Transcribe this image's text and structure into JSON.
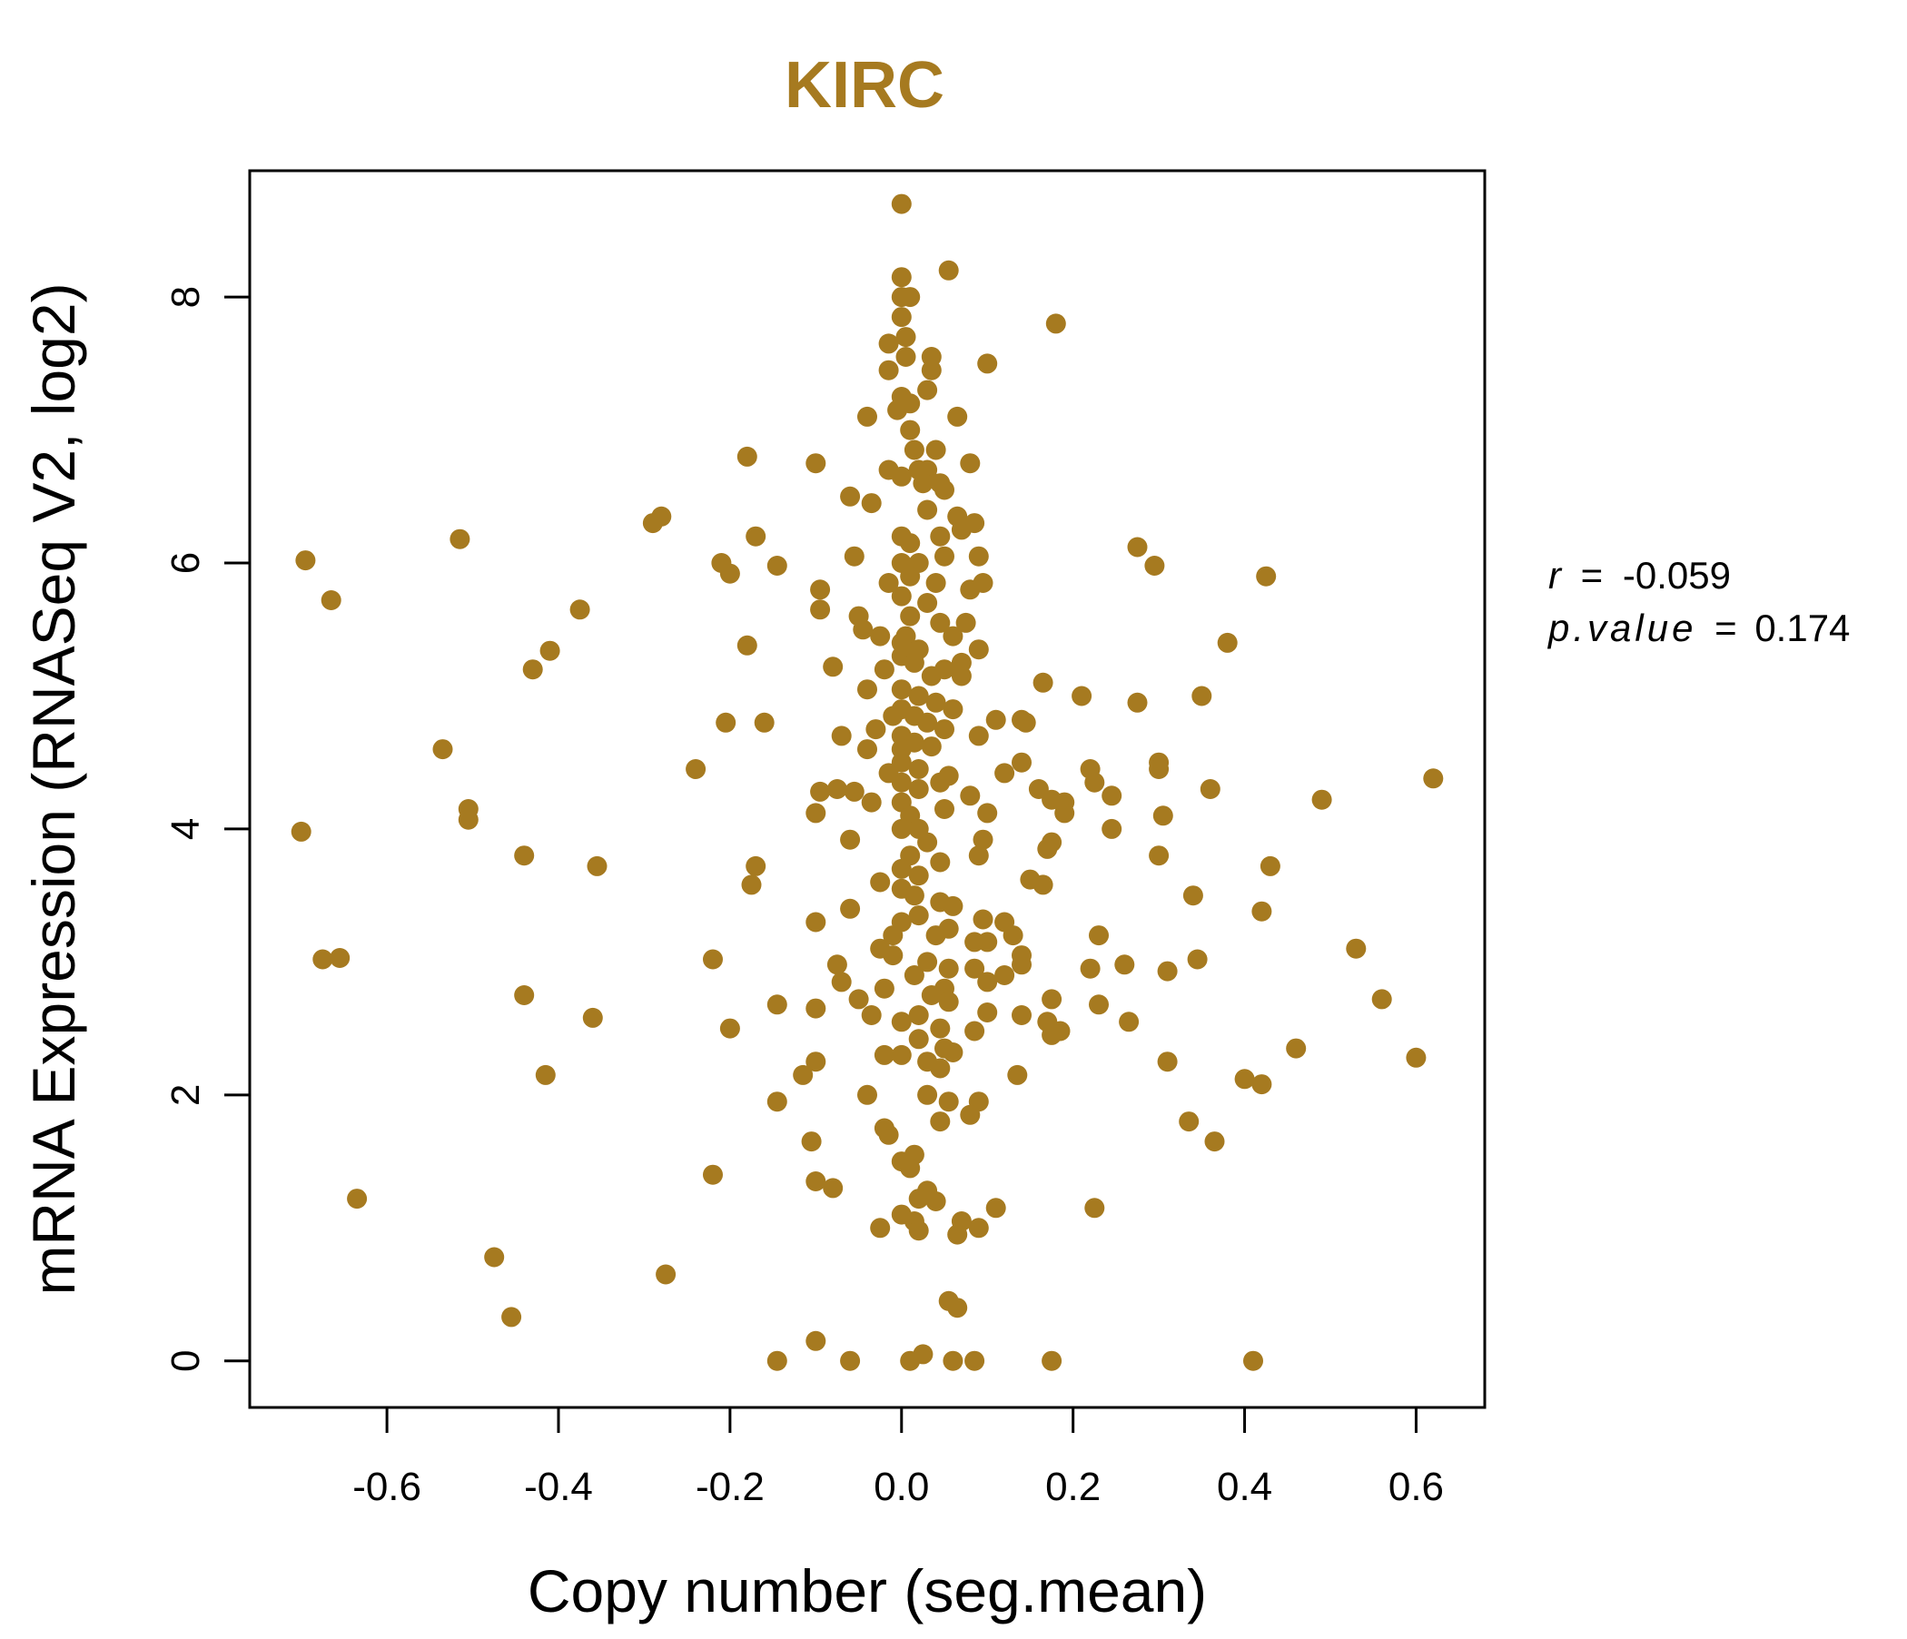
{
  "chart_data": {
    "type": "scatter",
    "title": "KIRC",
    "xlabel": "Copy number (seg.mean)",
    "ylabel": "mRNA Expression (RNASeq V2, log2)",
    "xlim": [
      -0.76,
      0.68
    ],
    "ylim": [
      -0.35,
      8.95
    ],
    "x_ticks": [
      -0.6,
      -0.4,
      -0.2,
      0.0,
      0.2,
      0.4,
      0.6
    ],
    "x_tick_labels": [
      "-0.6",
      "-0.4",
      "-0.2",
      "0.0",
      "0.2",
      "0.4",
      "0.6"
    ],
    "y_ticks": [
      0,
      2,
      4,
      6,
      8
    ],
    "y_tick_labels": [
      "0",
      "2",
      "4",
      "6",
      "8"
    ],
    "grid": false,
    "annotations": {
      "r_label": "r",
      "r_value": "-0.059",
      "p_label": "p.value",
      "p_value": "0.174",
      "eq": "="
    },
    "colors": {
      "points": "#A67A20",
      "title": "#A67A20",
      "axes": "#000000"
    },
    "points": [
      [
        0.0,
        8.7
      ],
      [
        0.0,
        8.15
      ],
      [
        0.055,
        8.2
      ],
      [
        0.0,
        8.0
      ],
      [
        0.01,
        8.0
      ],
      [
        0.0,
        7.85
      ],
      [
        0.18,
        7.8
      ],
      [
        -0.015,
        7.65
      ],
      [
        0.005,
        7.7
      ],
      [
        0.035,
        7.55
      ],
      [
        0.1,
        7.5
      ],
      [
        0.005,
        7.55
      ],
      [
        -0.015,
        7.45
      ],
      [
        0.035,
        7.45
      ],
      [
        0.03,
        7.3
      ],
      [
        0.0,
        7.25
      ],
      [
        0.01,
        7.2
      ],
      [
        -0.005,
        7.15
      ],
      [
        -0.04,
        7.1
      ],
      [
        0.065,
        7.1
      ],
      [
        0.01,
        7.0
      ],
      [
        0.015,
        6.85
      ],
      [
        0.04,
        6.85
      ],
      [
        0.02,
        6.7
      ],
      [
        0.03,
        6.7
      ],
      [
        0.08,
        6.75
      ],
      [
        -0.1,
        6.75
      ],
      [
        -0.18,
        6.8
      ],
      [
        -0.015,
        6.7
      ],
      [
        0.0,
        6.65
      ],
      [
        0.025,
        6.6
      ],
      [
        0.045,
        6.6
      ],
      [
        0.05,
        6.55
      ],
      [
        -0.06,
        6.5
      ],
      [
        -0.035,
        6.45
      ],
      [
        0.03,
        6.4
      ],
      [
        0.065,
        6.35
      ],
      [
        -0.28,
        6.35
      ],
      [
        -0.29,
        6.3
      ],
      [
        0.085,
        6.3
      ],
      [
        0.0,
        6.2
      ],
      [
        0.01,
        6.15
      ],
      [
        0.045,
        6.2
      ],
      [
        0.07,
        6.25
      ],
      [
        -0.17,
        6.2
      ],
      [
        -0.515,
        6.18
      ],
      [
        0.275,
        6.12
      ],
      [
        0.09,
        6.05
      ],
      [
        0.05,
        6.05
      ],
      [
        0.02,
        6.0
      ],
      [
        0.0,
        6.0
      ],
      [
        -0.055,
        6.05
      ],
      [
        -0.21,
        6.0
      ],
      [
        -0.145,
        5.98
      ],
      [
        -0.2,
        5.92
      ],
      [
        -0.695,
        6.02
      ],
      [
        0.295,
        5.98
      ],
      [
        0.425,
        5.9
      ],
      [
        0.01,
        5.9
      ],
      [
        0.04,
        5.85
      ],
      [
        0.08,
        5.8
      ],
      [
        -0.015,
        5.85
      ],
      [
        0.095,
        5.85
      ],
      [
        -0.095,
        5.8
      ],
      [
        0.0,
        5.75
      ],
      [
        0.03,
        5.7
      ],
      [
        -0.665,
        5.72
      ],
      [
        -0.375,
        5.65
      ],
      [
        -0.095,
        5.65
      ],
      [
        -0.05,
        5.6
      ],
      [
        0.01,
        5.6
      ],
      [
        0.045,
        5.55
      ],
      [
        -0.045,
        5.5
      ],
      [
        0.005,
        5.45
      ],
      [
        0.06,
        5.45
      ],
      [
        0.075,
        5.55
      ],
      [
        -0.025,
        5.45
      ],
      [
        0.38,
        5.4
      ],
      [
        0.0,
        5.4
      ],
      [
        0.02,
        5.35
      ],
      [
        0.09,
        5.35
      ],
      [
        -0.18,
        5.38
      ],
      [
        -0.41,
        5.34
      ],
      [
        -0.43,
        5.2
      ],
      [
        0.0,
        5.3
      ],
      [
        0.015,
        5.25
      ],
      [
        0.07,
        5.25
      ],
      [
        -0.08,
        5.22
      ],
      [
        -0.02,
        5.2
      ],
      [
        0.035,
        5.15
      ],
      [
        0.05,
        5.2
      ],
      [
        0.07,
        5.15
      ],
      [
        0.165,
        5.1
      ],
      [
        0.0,
        5.05
      ],
      [
        0.02,
        5.0
      ],
      [
        -0.04,
        5.05
      ],
      [
        0.04,
        4.95
      ],
      [
        0.21,
        5.0
      ],
      [
        0.35,
        5.0
      ],
      [
        0.275,
        4.95
      ],
      [
        0.06,
        4.9
      ],
      [
        0.0,
        4.9
      ],
      [
        -0.01,
        4.85
      ],
      [
        0.015,
        4.85
      ],
      [
        0.03,
        4.8
      ],
      [
        0.14,
        4.82
      ],
      [
        0.145,
        4.8
      ],
      [
        0.11,
        4.82
      ],
      [
        -0.205,
        4.8
      ],
      [
        -0.16,
        4.8
      ],
      [
        -0.03,
        4.75
      ],
      [
        0.0,
        4.7
      ],
      [
        0.05,
        4.75
      ],
      [
        0.09,
        4.7
      ],
      [
        -0.07,
        4.7
      ],
      [
        0.015,
        4.65
      ],
      [
        0.035,
        4.62
      ],
      [
        0.0,
        4.6
      ],
      [
        -0.04,
        4.6
      ],
      [
        -0.535,
        4.6
      ],
      [
        0.14,
        4.5
      ],
      [
        0.22,
        4.45
      ],
      [
        0.3,
        4.5
      ],
      [
        -0.24,
        4.45
      ],
      [
        0.0,
        4.5
      ],
      [
        0.02,
        4.45
      ],
      [
        -0.015,
        4.42
      ],
      [
        0.055,
        4.4
      ],
      [
        0.12,
        4.42
      ],
      [
        0.225,
        4.35
      ],
      [
        0.3,
        4.45
      ],
      [
        0.045,
        4.35
      ],
      [
        0.0,
        4.35
      ],
      [
        0.36,
        4.3
      ],
      [
        0.16,
        4.3
      ],
      [
        0.62,
        4.38
      ],
      [
        0.02,
        4.3
      ],
      [
        -0.055,
        4.28
      ],
      [
        -0.075,
        4.3
      ],
      [
        0.08,
        4.25
      ],
      [
        0.175,
        4.22
      ],
      [
        0.19,
        4.2
      ],
      [
        0.245,
        4.25
      ],
      [
        0.49,
        4.22
      ],
      [
        -0.095,
        4.28
      ],
      [
        -0.035,
        4.2
      ],
      [
        0.0,
        4.2
      ],
      [
        -0.505,
        4.15
      ],
      [
        0.05,
        4.15
      ],
      [
        0.1,
        4.12
      ],
      [
        0.19,
        4.12
      ],
      [
        0.305,
        4.1
      ],
      [
        0.01,
        4.1
      ],
      [
        -0.1,
        4.12
      ],
      [
        -0.505,
        4.07
      ],
      [
        -0.7,
        3.98
      ],
      [
        0.0,
        4.0
      ],
      [
        0.02,
        4.0
      ],
      [
        0.245,
        4.0
      ],
      [
        0.095,
        3.92
      ],
      [
        0.175,
        3.9
      ],
      [
        -0.06,
        3.92
      ],
      [
        0.03,
        3.9
      ],
      [
        -0.44,
        3.8
      ],
      [
        0.17,
        3.85
      ],
      [
        0.09,
        3.8
      ],
      [
        0.01,
        3.8
      ],
      [
        0.045,
        3.75
      ],
      [
        0.3,
        3.8
      ],
      [
        0.43,
        3.72
      ],
      [
        -0.355,
        3.72
      ],
      [
        -0.17,
        3.72
      ],
      [
        0.0,
        3.7
      ],
      [
        0.02,
        3.65
      ],
      [
        -0.025,
        3.6
      ],
      [
        0.15,
        3.62
      ],
      [
        0.165,
        3.58
      ],
      [
        -0.175,
        3.58
      ],
      [
        0.0,
        3.55
      ],
      [
        0.015,
        3.5
      ],
      [
        0.045,
        3.45
      ],
      [
        0.34,
        3.5
      ],
      [
        0.06,
        3.42
      ],
      [
        -0.06,
        3.4
      ],
      [
        0.42,
        3.38
      ],
      [
        0.02,
        3.35
      ],
      [
        0.095,
        3.32
      ],
      [
        -0.1,
        3.3
      ],
      [
        0.0,
        3.3
      ],
      [
        0.12,
        3.3
      ],
      [
        0.13,
        3.2
      ],
      [
        0.23,
        3.2
      ],
      [
        0.055,
        3.25
      ],
      [
        0.04,
        3.2
      ],
      [
        0.1,
        3.15
      ],
      [
        0.085,
        3.15
      ],
      [
        0.53,
        3.1
      ],
      [
        -0.01,
        3.2
      ],
      [
        -0.025,
        3.1
      ],
      [
        -0.01,
        3.05
      ],
      [
        0.14,
        3.05
      ],
      [
        0.345,
        3.02
      ],
      [
        -0.22,
        3.02
      ],
      [
        -0.675,
        3.02
      ],
      [
        -0.655,
        3.03
      ],
      [
        0.03,
        3.0
      ],
      [
        0.085,
        2.95
      ],
      [
        0.14,
        2.98
      ],
      [
        0.26,
        2.98
      ],
      [
        0.22,
        2.95
      ],
      [
        -0.075,
        2.98
      ],
      [
        0.055,
        2.95
      ],
      [
        0.31,
        2.93
      ],
      [
        0.015,
        2.9
      ],
      [
        0.12,
        2.9
      ],
      [
        0.1,
        2.85
      ],
      [
        -0.07,
        2.85
      ],
      [
        0.05,
        2.8
      ],
      [
        -0.02,
        2.8
      ],
      [
        0.035,
        2.75
      ],
      [
        0.175,
        2.72
      ],
      [
        0.56,
        2.72
      ],
      [
        -0.44,
        2.75
      ],
      [
        -0.05,
        2.72
      ],
      [
        -0.145,
        2.68
      ],
      [
        0.23,
        2.68
      ],
      [
        0.055,
        2.7
      ],
      [
        -0.1,
        2.65
      ],
      [
        0.02,
        2.6
      ],
      [
        0.1,
        2.62
      ],
      [
        0.14,
        2.6
      ],
      [
        0.17,
        2.55
      ],
      [
        0.265,
        2.55
      ],
      [
        -0.035,
        2.6
      ],
      [
        -0.36,
        2.58
      ],
      [
        0.0,
        2.55
      ],
      [
        0.045,
        2.5
      ],
      [
        -0.2,
        2.5
      ],
      [
        0.175,
        2.45
      ],
      [
        0.185,
        2.48
      ],
      [
        0.085,
        2.48
      ],
      [
        0.02,
        2.42
      ],
      [
        0.05,
        2.35
      ],
      [
        0.06,
        2.32
      ],
      [
        -0.02,
        2.3
      ],
      [
        -0.1,
        2.25
      ],
      [
        0.46,
        2.35
      ],
      [
        0.31,
        2.25
      ],
      [
        0.0,
        2.3
      ],
      [
        0.03,
        2.25
      ],
      [
        0.045,
        2.2
      ],
      [
        0.6,
        2.28
      ],
      [
        -0.415,
        2.15
      ],
      [
        -0.115,
        2.15
      ],
      [
        0.135,
        2.15
      ],
      [
        0.4,
        2.12
      ],
      [
        0.42,
        2.08
      ],
      [
        -0.04,
        2.0
      ],
      [
        0.03,
        2.0
      ],
      [
        -0.145,
        1.95
      ],
      [
        0.055,
        1.95
      ],
      [
        0.09,
        1.95
      ],
      [
        0.08,
        1.85
      ],
      [
        0.045,
        1.8
      ],
      [
        0.335,
        1.8
      ],
      [
        -0.02,
        1.75
      ],
      [
        -0.015,
        1.7
      ],
      [
        0.365,
        1.65
      ],
      [
        -0.105,
        1.65
      ],
      [
        0.015,
        1.55
      ],
      [
        0.0,
        1.5
      ],
      [
        0.01,
        1.45
      ],
      [
        -0.22,
        1.4
      ],
      [
        -0.1,
        1.35
      ],
      [
        -0.08,
        1.3
      ],
      [
        0.03,
        1.28
      ],
      [
        0.02,
        1.22
      ],
      [
        0.04,
        1.2
      ],
      [
        -0.635,
        1.22
      ],
      [
        0.11,
        1.15
      ],
      [
        0.225,
        1.15
      ],
      [
        0.0,
        1.1
      ],
      [
        0.015,
        1.05
      ],
      [
        0.07,
        1.05
      ],
      [
        -0.025,
        1.0
      ],
      [
        0.02,
        0.98
      ],
      [
        0.09,
        1.0
      ],
      [
        0.065,
        0.95
      ],
      [
        -0.475,
        0.78
      ],
      [
        -0.275,
        0.65
      ],
      [
        0.055,
        0.45
      ],
      [
        0.065,
        0.4
      ],
      [
        -0.455,
        0.33
      ],
      [
        -0.1,
        0.15
      ],
      [
        -0.145,
        0.0
      ],
      [
        -0.06,
        0.0
      ],
      [
        0.01,
        0.0
      ],
      [
        0.025,
        0.05
      ],
      [
        0.06,
        0.0
      ],
      [
        0.085,
        0.0
      ],
      [
        0.175,
        0.0
      ],
      [
        0.41,
        0.0
      ]
    ]
  }
}
